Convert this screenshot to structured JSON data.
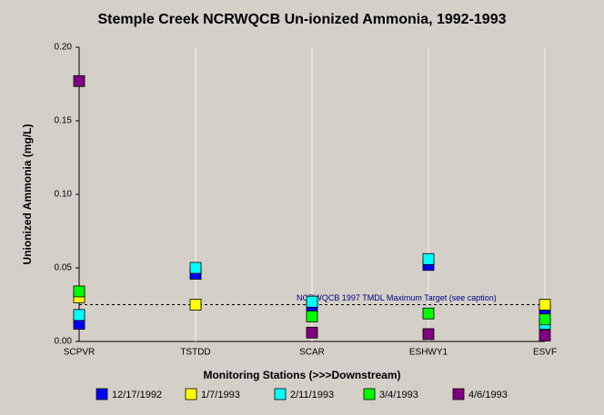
{
  "chart_data": {
    "type": "scatter",
    "title": "Stemple Creek NCRWQCB Un-ionized Ammonia, 1992-1993",
    "x_label": "Monitoring Stations (>>>Downstream)",
    "y_label": "Unionized Ammonia (mg/L)",
    "categories": [
      "SCPVR",
      "TSTDD",
      "SCAR",
      "ESHWY1",
      "ESVF"
    ],
    "series": [
      {
        "name": "12/17/1992",
        "color": "#0000ff",
        "values": [
          0.012,
          0.046,
          0.024,
          0.052,
          0.022
        ]
      },
      {
        "name": "1/7/1993",
        "color": "#ffff00",
        "values": [
          0.03,
          0.025,
          null,
          null,
          0.025
        ]
      },
      {
        "name": "2/11/1993",
        "color": "#00ffff",
        "values": [
          0.018,
          0.05,
          0.027,
          0.056,
          0.012
        ]
      },
      {
        "name": "3/4/1993",
        "color": "#00ff00",
        "values": [
          0.034,
          null,
          0.017,
          0.019,
          0.015
        ]
      },
      {
        "name": "4/6/1993",
        "color": "#800080",
        "values": [
          0.177,
          null,
          0.006,
          0.005,
          0.004
        ]
      }
    ],
    "reference_line": {
      "value": 0.025,
      "label": "NCRWQCB 1997 TMDL Maximum Target (see caption)"
    },
    "ylim": [
      0,
      0.2
    ],
    "yticks": [
      {
        "value": 0,
        "label": "0.00"
      },
      {
        "value": 0.05,
        "label": "0.05"
      },
      {
        "value": 0.1,
        "label": "0.10"
      },
      {
        "value": 0.15,
        "label": "0.15"
      },
      {
        "value": 0.2,
        "label": "0.20"
      }
    ],
    "grid": true
  }
}
